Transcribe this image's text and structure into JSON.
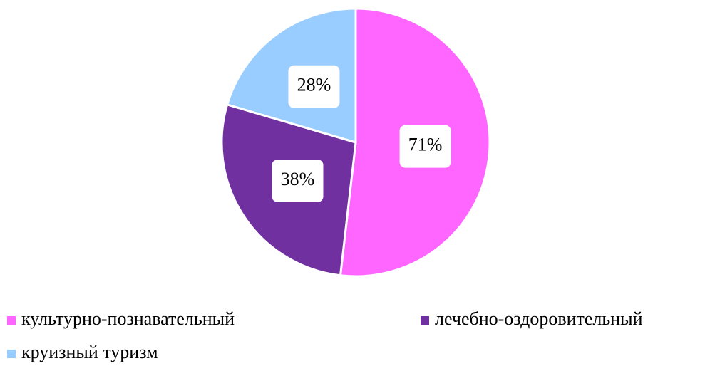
{
  "chart_data": {
    "type": "pie",
    "categories": [
      "культурно-познавательный",
      "лечебно-оздоровительный",
      "круизный туризм"
    ],
    "values": [
      71,
      38,
      28
    ],
    "value_labels": [
      "71%",
      "38%",
      "28%"
    ],
    "colors": [
      "#ff66ff",
      "#7030a0",
      "#99ccff"
    ],
    "legend": "bottom"
  }
}
